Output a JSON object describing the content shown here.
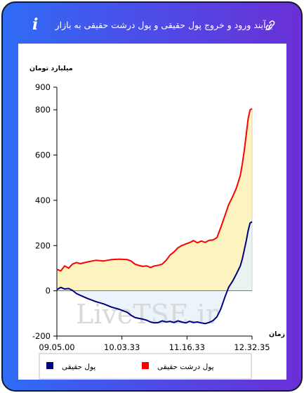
{
  "header": {
    "title": "برآیند ورود و خروج پول حقیقی و پول درشت حقیقی به بازار",
    "info_glyph": "i",
    "icons": [
      "link-icon",
      "info-icon"
    ]
  },
  "watermark": "LiveTSE.ir",
  "colors": {
    "red_line": "#ff0000",
    "blue_line": "#000080",
    "red_fill": "#fcf3c0",
    "blue_fill": "#e8f2fa",
    "overlap_fill": "#ece8c6",
    "frame_start": "#2f6cf5",
    "frame_end": "#6a2fd6"
  },
  "chart_data": {
    "type": "line",
    "ylabel": "میلیارد تومان",
    "xlabel": "زمان",
    "ylim": [
      -200,
      900
    ],
    "yticks": [
      "900",
      "800",
      "600",
      "400",
      "200",
      "0",
      "-200"
    ],
    "xticks": [
      "09.05.00",
      "10.03.33",
      "11.16.33",
      "12.32.35"
    ],
    "legend_position": "bottom",
    "fill_to_zero": true,
    "series": [
      {
        "name": "پول درشت حقیقی",
        "color": "#ff0000",
        "values": [
          [
            0,
            95
          ],
          [
            0.02,
            88
          ],
          [
            0.04,
            110
          ],
          [
            0.06,
            100
          ],
          [
            0.08,
            118
          ],
          [
            0.1,
            125
          ],
          [
            0.12,
            120
          ],
          [
            0.16,
            128
          ],
          [
            0.2,
            135
          ],
          [
            0.24,
            132
          ],
          [
            0.28,
            138
          ],
          [
            0.32,
            140
          ],
          [
            0.36,
            138
          ],
          [
            0.38,
            132
          ],
          [
            0.4,
            118
          ],
          [
            0.42,
            112
          ],
          [
            0.44,
            108
          ],
          [
            0.46,
            110
          ],
          [
            0.48,
            103
          ],
          [
            0.5,
            110
          ],
          [
            0.52,
            113
          ],
          [
            0.54,
            118
          ],
          [
            0.56,
            135
          ],
          [
            0.58,
            158
          ],
          [
            0.6,
            172
          ],
          [
            0.62,
            190
          ],
          [
            0.64,
            200
          ],
          [
            0.66,
            207
          ],
          [
            0.68,
            213
          ],
          [
            0.7,
            222
          ],
          [
            0.72,
            212
          ],
          [
            0.74,
            220
          ],
          [
            0.76,
            214
          ],
          [
            0.78,
            223
          ],
          [
            0.8,
            225
          ],
          [
            0.82,
            235
          ],
          [
            0.84,
            280
          ],
          [
            0.86,
            330
          ],
          [
            0.88,
            380
          ],
          [
            0.9,
            415
          ],
          [
            0.92,
            455
          ],
          [
            0.94,
            510
          ],
          [
            0.95,
            560
          ],
          [
            0.96,
            620
          ],
          [
            0.97,
            690
          ],
          [
            0.98,
            760
          ],
          [
            0.99,
            800
          ],
          [
            1,
            805
          ]
        ]
      },
      {
        "name": "پول حقیقی",
        "color": "#000080",
        "values": [
          [
            0,
            5
          ],
          [
            0.02,
            15
          ],
          [
            0.04,
            8
          ],
          [
            0.06,
            10
          ],
          [
            0.08,
            2
          ],
          [
            0.1,
            -12
          ],
          [
            0.12,
            -20
          ],
          [
            0.16,
            -35
          ],
          [
            0.2,
            -48
          ],
          [
            0.24,
            -58
          ],
          [
            0.28,
            -72
          ],
          [
            0.32,
            -82
          ],
          [
            0.36,
            -95
          ],
          [
            0.38,
            -108
          ],
          [
            0.4,
            -118
          ],
          [
            0.42,
            -122
          ],
          [
            0.44,
            -125
          ],
          [
            0.46,
            -130
          ],
          [
            0.48,
            -138
          ],
          [
            0.5,
            -142
          ],
          [
            0.52,
            -140
          ],
          [
            0.54,
            -133
          ],
          [
            0.56,
            -138
          ],
          [
            0.58,
            -135
          ],
          [
            0.6,
            -140
          ],
          [
            0.62,
            -133
          ],
          [
            0.64,
            -138
          ],
          [
            0.66,
            -142
          ],
          [
            0.68,
            -135
          ],
          [
            0.7,
            -140
          ],
          [
            0.72,
            -138
          ],
          [
            0.74,
            -142
          ],
          [
            0.76,
            -145
          ],
          [
            0.78,
            -140
          ],
          [
            0.8,
            -132
          ],
          [
            0.82,
            -115
          ],
          [
            0.84,
            -80
          ],
          [
            0.86,
            -30
          ],
          [
            0.88,
            15
          ],
          [
            0.9,
            42
          ],
          [
            0.92,
            75
          ],
          [
            0.94,
            110
          ],
          [
            0.95,
            140
          ],
          [
            0.96,
            180
          ],
          [
            0.97,
            220
          ],
          [
            0.98,
            265
          ],
          [
            0.99,
            300
          ],
          [
            1,
            305
          ]
        ]
      }
    ]
  }
}
